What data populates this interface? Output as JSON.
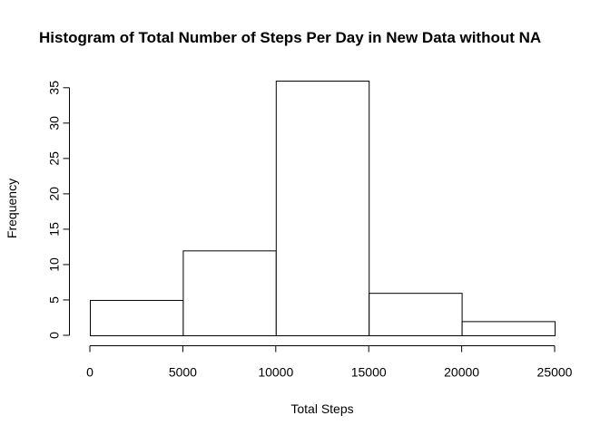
{
  "chart_data": {
    "type": "bar",
    "title": "Histogram of Total Number of Steps Per Day in New Data without NA",
    "xlabel": "Total Steps",
    "ylabel": "Frequency",
    "bins": [
      {
        "from": 0,
        "to": 5000,
        "value": 5
      },
      {
        "from": 5000,
        "to": 10000,
        "value": 12
      },
      {
        "from": 10000,
        "to": 15000,
        "value": 36
      },
      {
        "from": 15000,
        "to": 20000,
        "value": 6
      },
      {
        "from": 20000,
        "to": 25000,
        "value": 2
      }
    ],
    "xlim": [
      0,
      25000
    ],
    "ylim": [
      0,
      36
    ],
    "x_ticks": [
      "0",
      "5000",
      "10000",
      "15000",
      "20000",
      "25000"
    ],
    "y_ticks": [
      "0",
      "5",
      "10",
      "15",
      "20",
      "25",
      "30",
      "35"
    ],
    "grid": false,
    "bar_fill": "#ffffff",
    "bar_stroke": "#000000"
  }
}
